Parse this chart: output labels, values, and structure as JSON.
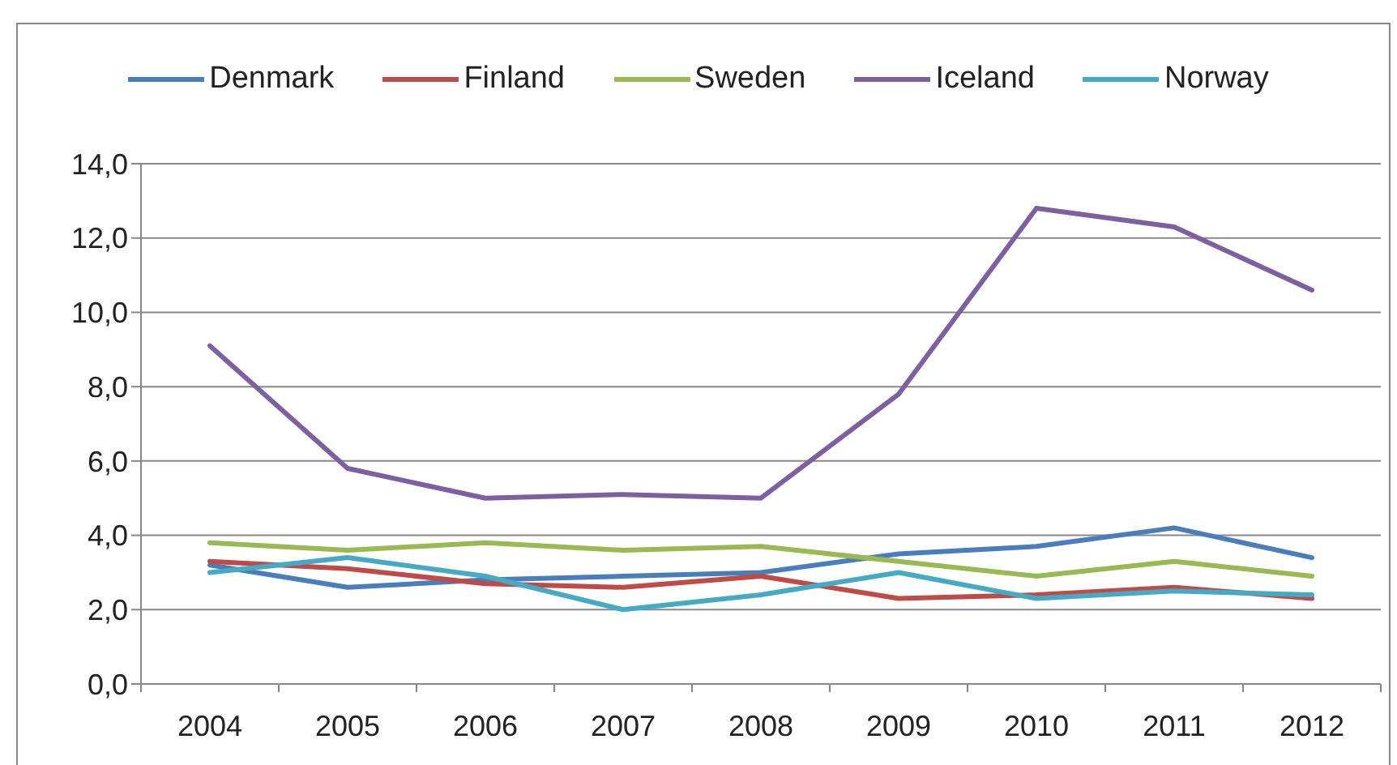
{
  "chart_data": {
    "type": "line",
    "categories": [
      "2004",
      "2005",
      "2006",
      "2007",
      "2008",
      "2009",
      "2010",
      "2011",
      "2012"
    ],
    "series": [
      {
        "name": "Denmark",
        "color": "#4a7ebb",
        "values": [
          3.2,
          2.6,
          2.8,
          2.9,
          3.0,
          3.5,
          3.7,
          4.2,
          3.4
        ]
      },
      {
        "name": "Finland",
        "color": "#be4b48",
        "values": [
          3.3,
          3.1,
          2.7,
          2.6,
          2.9,
          2.3,
          2.4,
          2.6,
          2.3
        ]
      },
      {
        "name": "Sweden",
        "color": "#98b954",
        "values": [
          3.8,
          3.6,
          3.8,
          3.6,
          3.7,
          3.3,
          2.9,
          3.3,
          2.9
        ]
      },
      {
        "name": "Iceland",
        "color": "#7d60a0",
        "values": [
          9.1,
          5.8,
          5.0,
          5.1,
          5.0,
          7.8,
          12.8,
          12.3,
          10.6
        ]
      },
      {
        "name": "Norway",
        "color": "#46aac5",
        "values": [
          3.0,
          3.4,
          2.9,
          2.0,
          2.4,
          3.0,
          2.3,
          2.5,
          2.4
        ]
      }
    ],
    "ylim": [
      0,
      14
    ],
    "yticks": [
      {
        "value": 0,
        "label": "0,0"
      },
      {
        "value": 2,
        "label": "2,0"
      },
      {
        "value": 4,
        "label": "4,0"
      },
      {
        "value": 6,
        "label": "6,0"
      },
      {
        "value": 8,
        "label": "8,0"
      },
      {
        "value": 10,
        "label": "10,0"
      },
      {
        "value": 12,
        "label": "12,0"
      },
      {
        "value": 14,
        "label": "14,0"
      }
    ],
    "grid": "y",
    "legend": "top",
    "marker": "none"
  }
}
